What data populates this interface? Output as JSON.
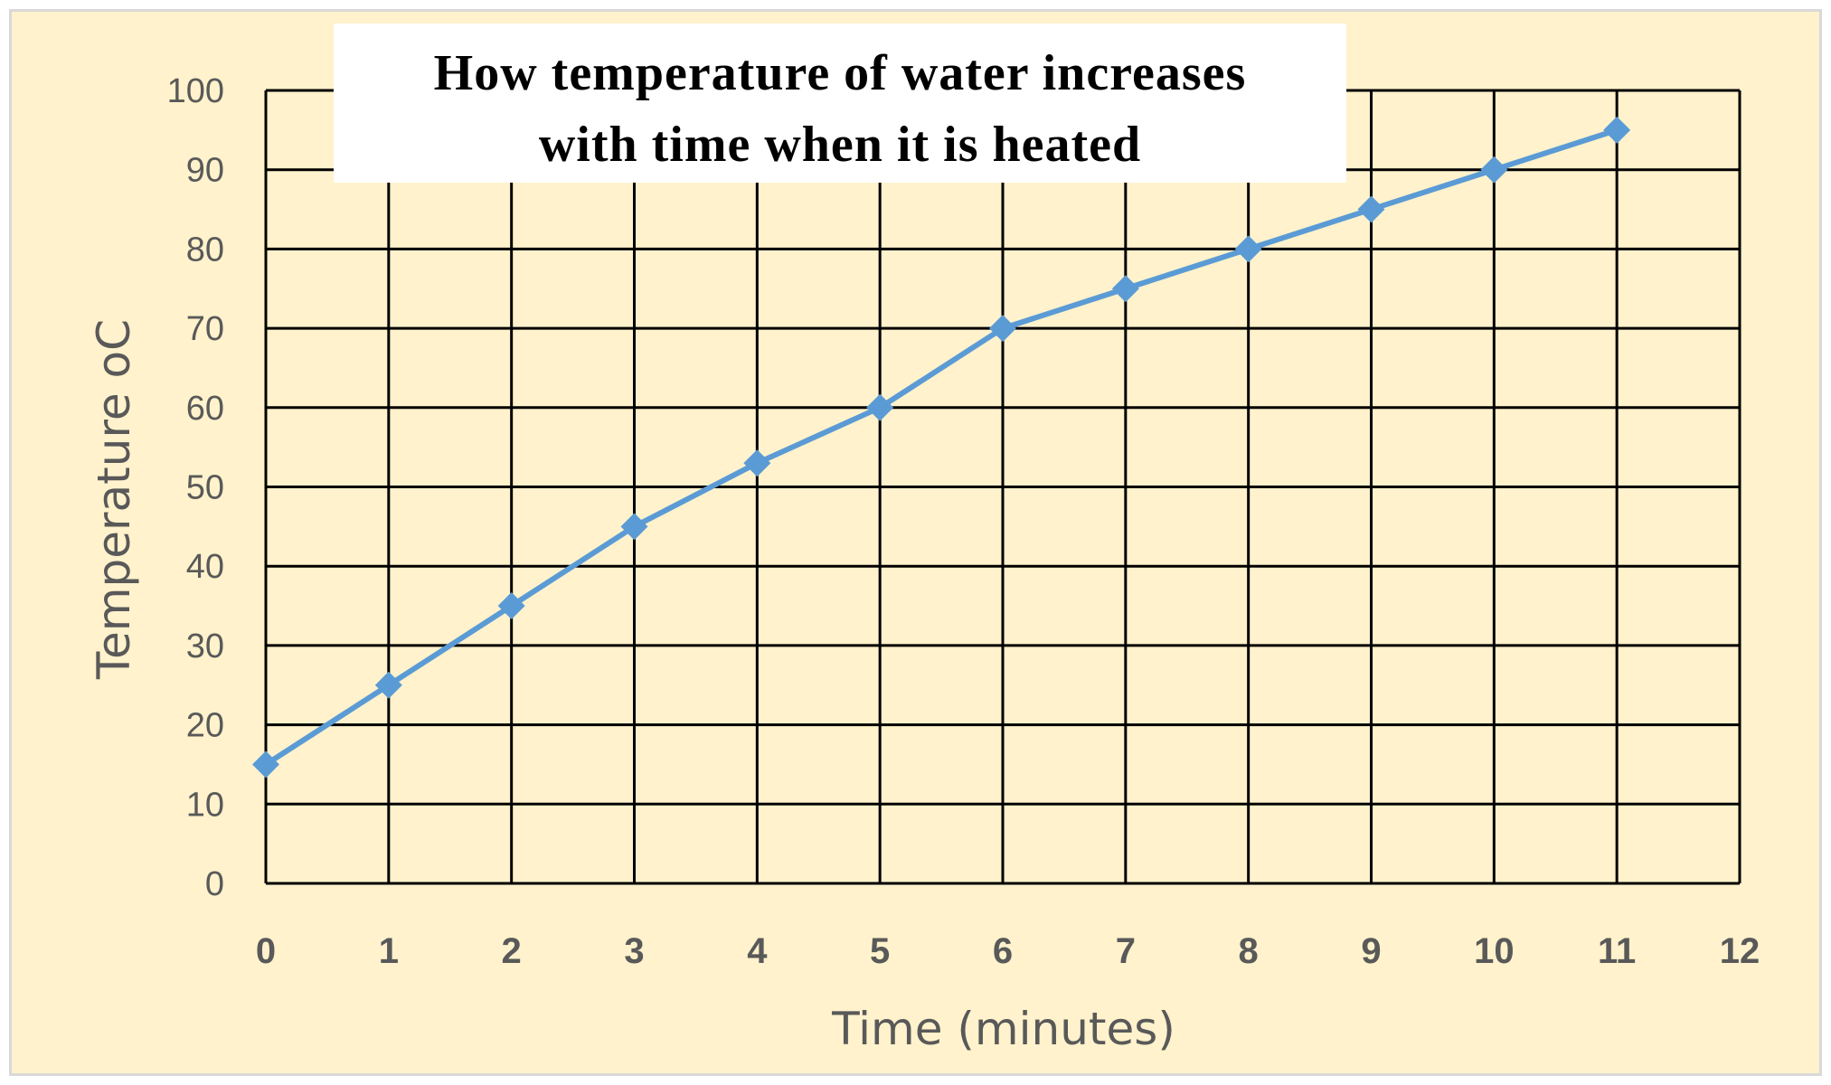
{
  "chart_data": {
    "type": "line",
    "title_lines": [
      "How temperature of water increases",
      "with time when it is heated"
    ],
    "xlabel": "Time (minutes)",
    "ylabel": "Temperature  oC",
    "xlim": [
      0,
      12
    ],
    "ylim": [
      0,
      100
    ],
    "x_ticks": [
      0,
      1,
      2,
      3,
      4,
      5,
      6,
      7,
      8,
      9,
      10,
      11,
      12
    ],
    "y_ticks": [
      0,
      10,
      20,
      30,
      40,
      50,
      60,
      70,
      80,
      90,
      100
    ],
    "grid": true,
    "series": [
      {
        "x": [
          0,
          1,
          2,
          3,
          4,
          5,
          6,
          7,
          8,
          9,
          10,
          11
        ],
        "y": [
          15,
          25,
          35,
          45,
          53,
          60,
          70,
          75,
          80,
          85,
          90,
          95
        ],
        "color": "#5b9bd5",
        "marker": "diamond"
      }
    ],
    "colors": {
      "background": "#fff2cc",
      "grid": "#000000",
      "tick_text": "#595959",
      "title_box": "#ffffff"
    }
  }
}
